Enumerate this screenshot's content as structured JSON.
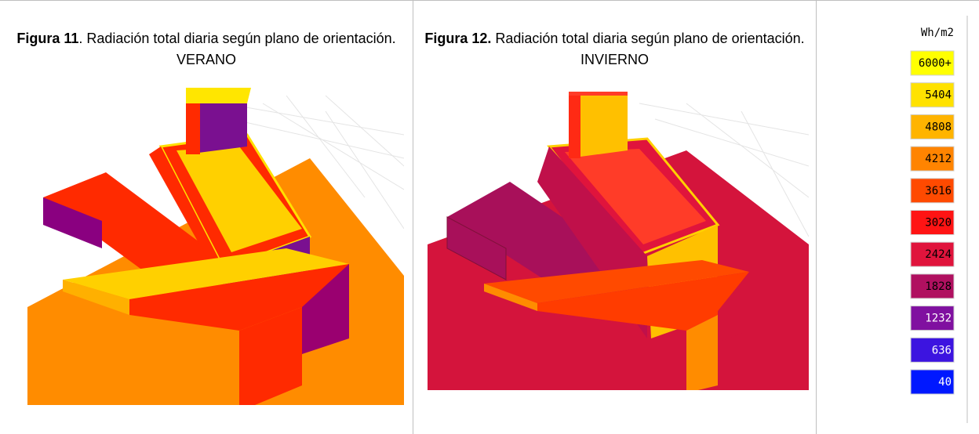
{
  "figures": [
    {
      "label": "Figura 11",
      "caption": ". Radiación total diaria según plano de orientación. VERANO"
    },
    {
      "label": "Figura 12.",
      "caption": " Radiación total diaria según plano de orientación. INVIERNO"
    }
  ],
  "legend": {
    "title": "Wh/m2",
    "items": [
      {
        "label": "6000+",
        "color": "#ffff00"
      },
      {
        "label": "5404",
        "color": "#ffe200"
      },
      {
        "label": "4808",
        "color": "#ffb400"
      },
      {
        "label": "4212",
        "color": "#ff8400"
      },
      {
        "label": "3616",
        "color": "#ff4a00"
      },
      {
        "label": "3020",
        "color": "#ff1414"
      },
      {
        "label": "2424",
        "color": "#e0143c"
      },
      {
        "label": "1828",
        "color": "#b01060"
      },
      {
        "label": "1232",
        "color": "#8010a0"
      },
      {
        "label": "636",
        "color": "#3c14e0"
      },
      {
        "label": "40",
        "color": "#0018ff"
      }
    ]
  }
}
